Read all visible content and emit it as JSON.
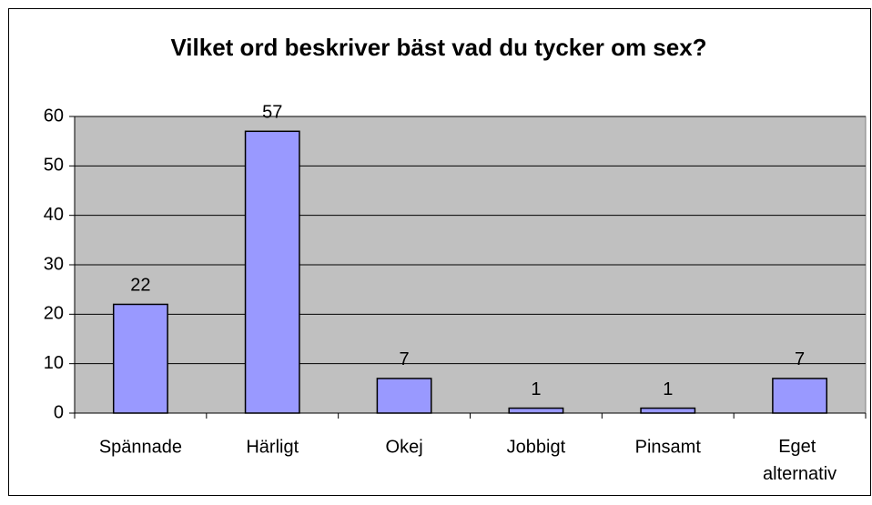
{
  "chart_data": {
    "type": "bar",
    "title": "Vilket ord beskriver bäst vad du tycker om sex?",
    "categories": [
      "Spännade",
      "Härligt",
      "Okej",
      "Jobbigt",
      "Pinsamt",
      "Eget alternativ"
    ],
    "values": [
      22,
      57,
      7,
      1,
      1,
      7
    ],
    "color": "#9999ff",
    "plot_background": "#c0c0c0",
    "ylim": [
      0,
      60
    ],
    "yticks": [
      0,
      10,
      20,
      30,
      40,
      50,
      60
    ],
    "grid": true
  }
}
